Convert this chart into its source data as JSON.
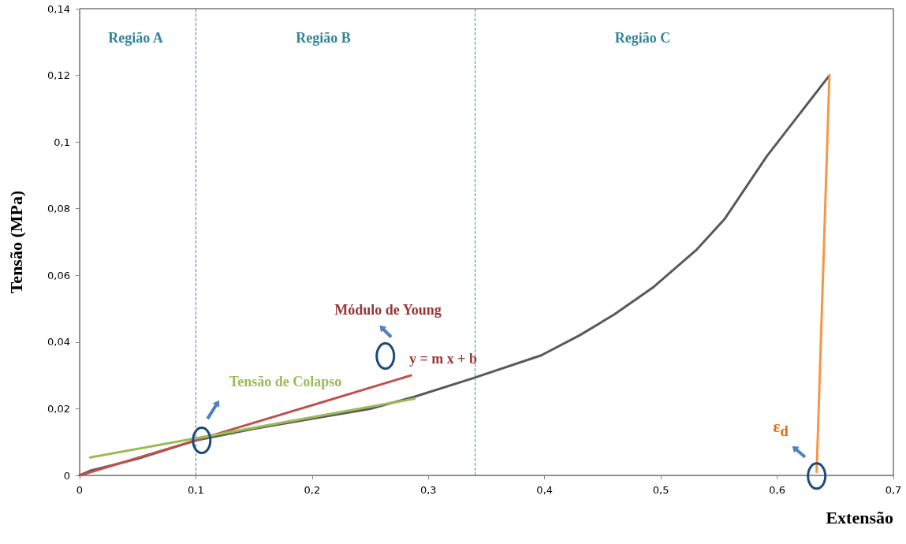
{
  "chart_data": {
    "type": "line",
    "xlabel": "Extensão",
    "ylabel": "Tensão (MPa)",
    "xlim": [
      0,
      0.7
    ],
    "xticks": [
      0,
      {
        "value": 0.1,
        "label": "0,1"
      },
      {
        "value": 0.2,
        "label": "0,2"
      },
      {
        "value": 0.3,
        "label": "0,3"
      },
      {
        "value": 0.4,
        "label": "0,4"
      },
      {
        "value": 0.5,
        "label": "0,5"
      },
      {
        "value": 0.6,
        "label": "0,6"
      },
      {
        "value": 0.7,
        "label": "0,7"
      }
    ],
    "ylim": [
      0,
      0.14
    ],
    "yticks": [
      0,
      {
        "value": 0.02,
        "label": "0,02"
      },
      {
        "value": 0.04,
        "label": "0,04"
      },
      {
        "value": 0.06,
        "label": "0,06"
      },
      {
        "value": 0.08,
        "label": "0,08"
      },
      {
        "value": 0.1,
        "label": "0,1"
      },
      {
        "value": 0.12,
        "label": "0,12"
      },
      {
        "value": 0.14,
        "label": "0,14"
      }
    ],
    "grid": false,
    "marker": "none",
    "line_style": "solid",
    "series": [
      {
        "color": "#595959",
        "x": [
          0,
          0.01,
          0.05,
          0.1,
          0.15,
          0.2,
          0.25,
          0.288,
          0.337,
          0.397,
          0.43,
          0.46,
          0.494,
          0.531,
          0.555,
          0.591,
          0.645
        ],
        "values": [
          0,
          0.0015,
          0.005,
          0.0105,
          0.014,
          0.017,
          0.02,
          0.0236,
          0.029,
          0.036,
          0.042,
          0.0483,
          0.0566,
          0.0678,
          0.077,
          0.0957,
          0.12
        ]
      },
      {
        "color": "#c0504d",
        "x": [
          0,
          0.285
        ],
        "values": [
          0,
          0.03
        ]
      },
      {
        "color": "#9bbb59",
        "x": [
          0.009,
          0.288
        ],
        "values": [
          0.0054,
          0.023
        ]
      },
      {
        "color": "#f79646",
        "x": [
          0.645,
          0.634
        ],
        "values": [
          0.12,
          0.001
        ]
      }
    ],
    "ref_lines": [
      {
        "axis": "x",
        "value": 0.1,
        "label": null,
        "color": "#4f81bd",
        "line_style": "dashed"
      },
      {
        "axis": "x",
        "value": 0.34,
        "label": null,
        "color": "#4f81bd",
        "line_style": "dashed"
      }
    ],
    "annotations": [
      "Região A",
      "Região B",
      "Região C",
      "Módulo de Young",
      "y = m x + b",
      "Tensão de Colapso",
      "ε$_{d}$"
    ]
  }
}
